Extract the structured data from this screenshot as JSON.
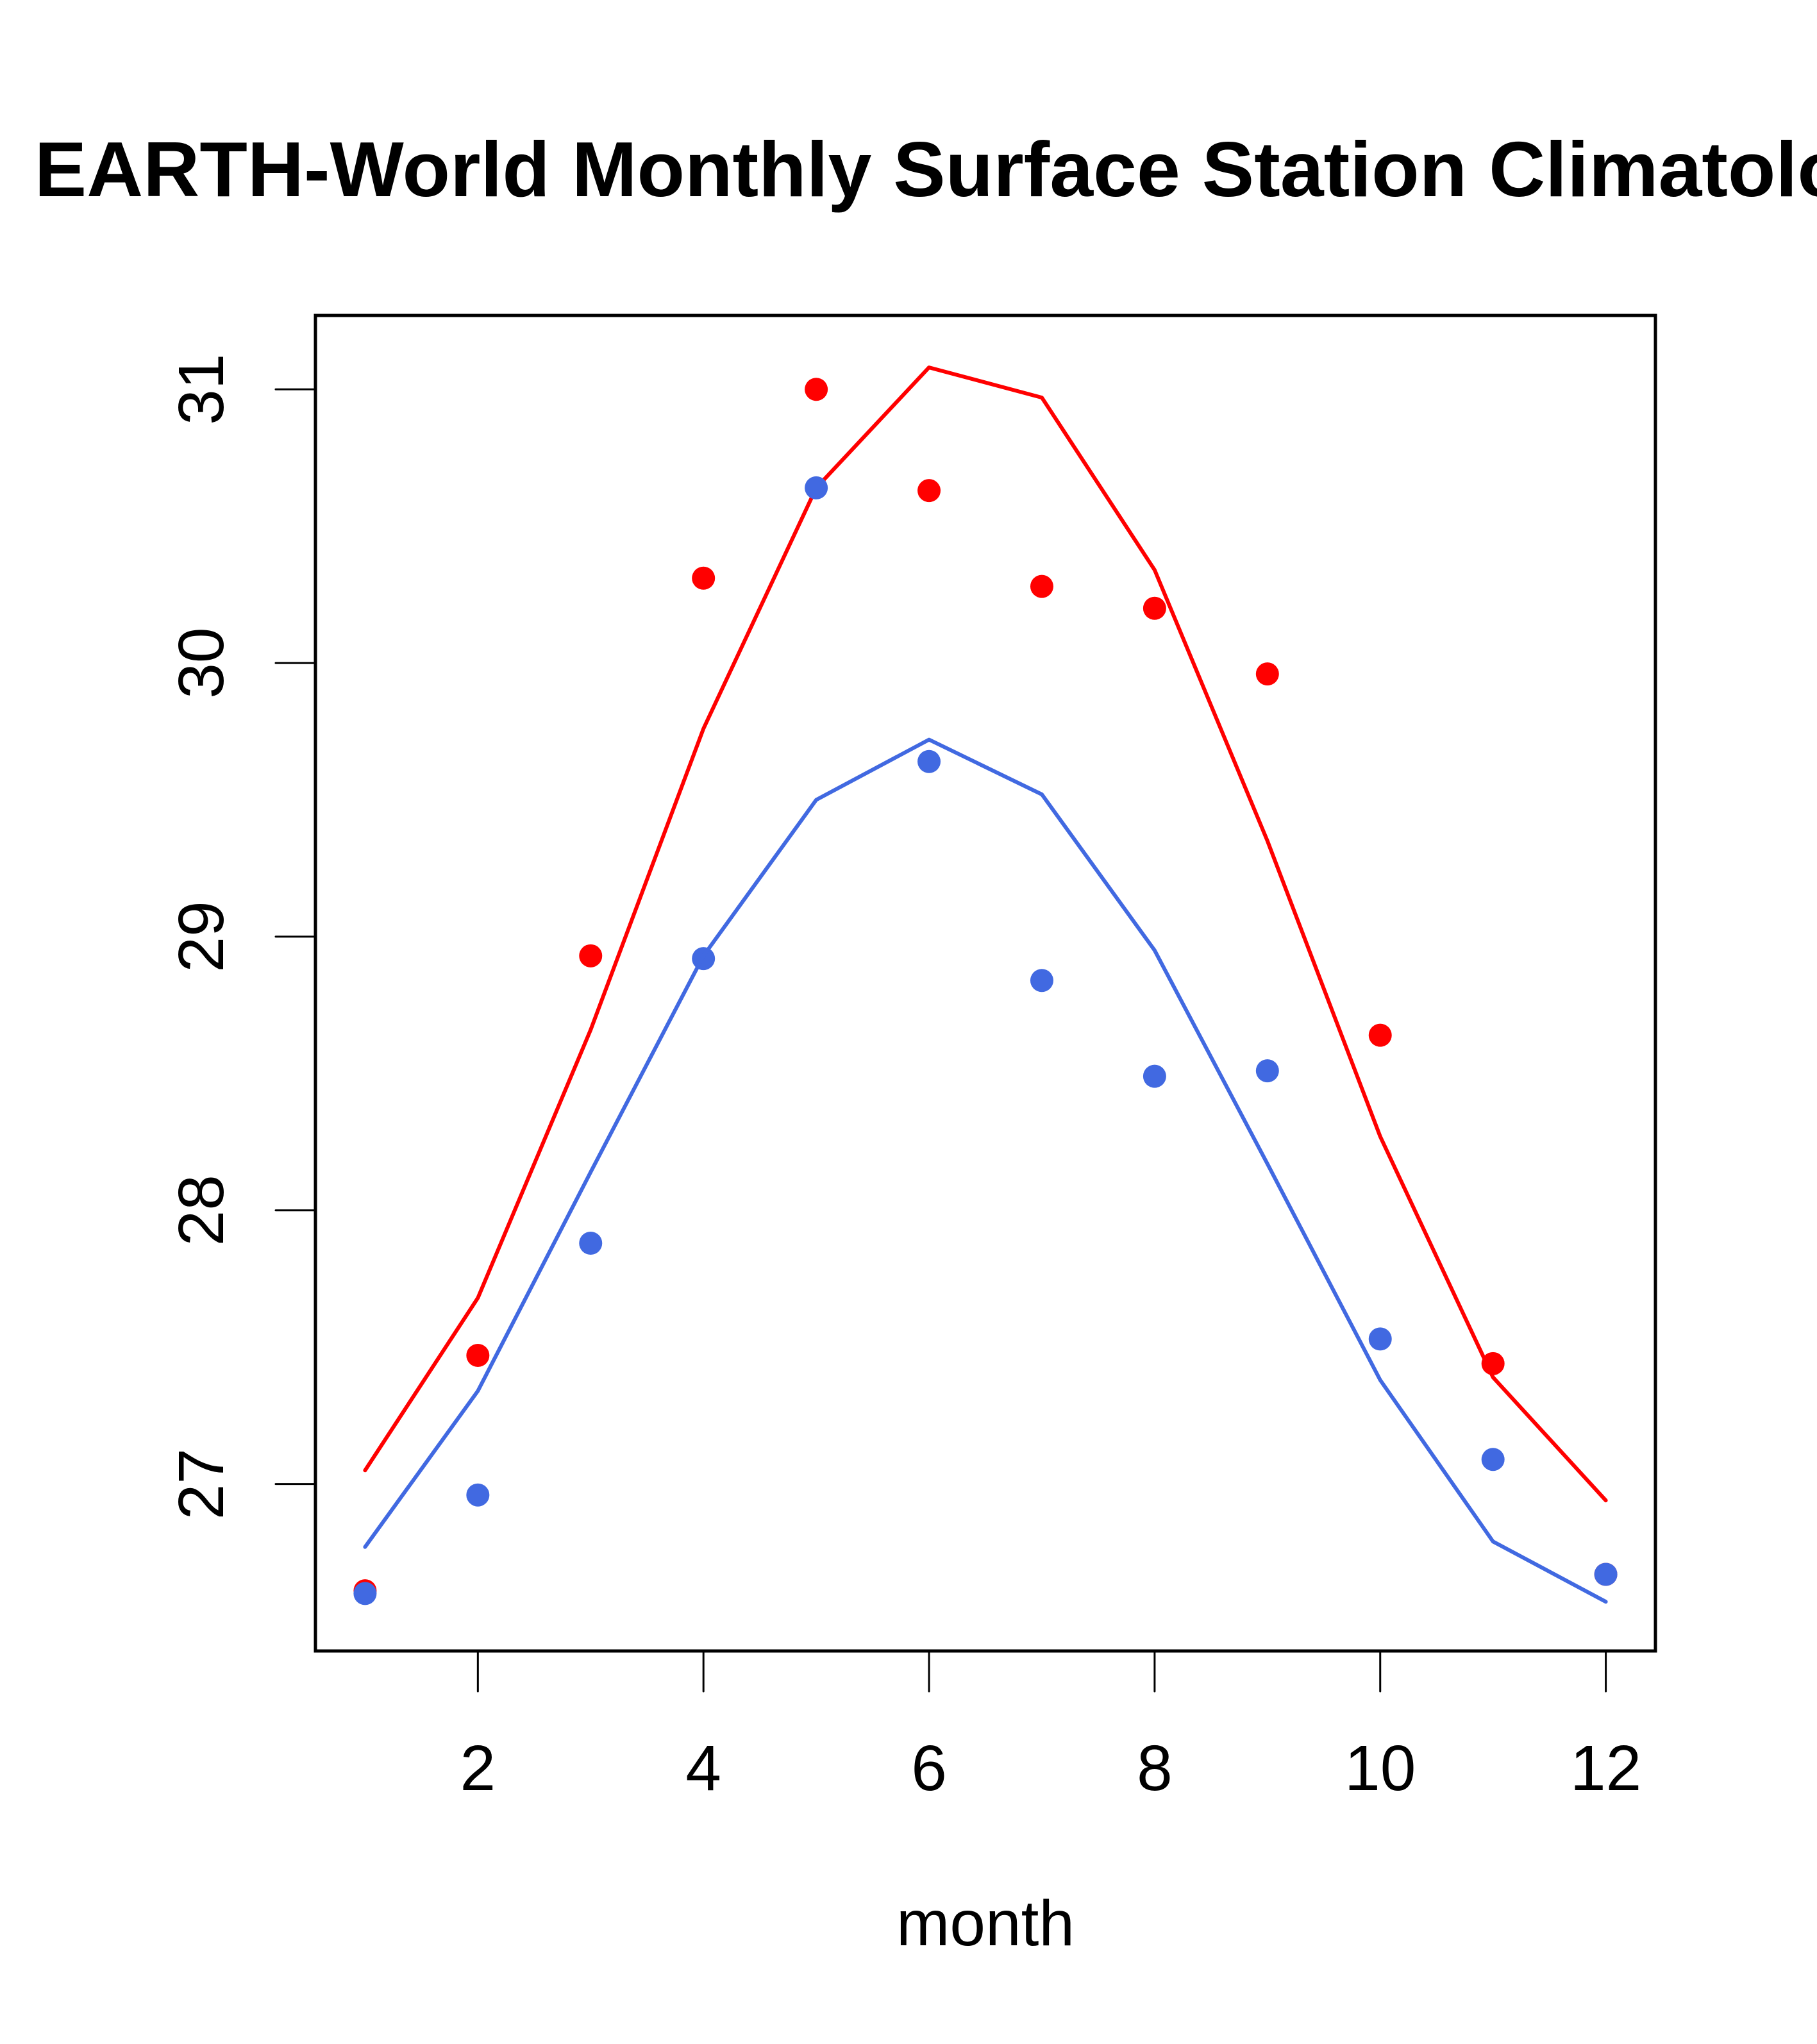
{
  "chart_data": {
    "type": "line",
    "title": "EARTH-World Monthly Surface Station Climatology",
    "xlabel": "month",
    "ylabel": "",
    "x": [
      1,
      2,
      3,
      4,
      5,
      6,
      7,
      8,
      9,
      10,
      11,
      12
    ],
    "xlim": [
      0.56,
      12.44
    ],
    "ylim": [
      26.39,
      31.27
    ],
    "x_ticks": [
      2,
      4,
      6,
      8,
      10,
      12
    ],
    "x_tick_labels": [
      "2",
      "4",
      "6",
      "8",
      "10",
      "12"
    ],
    "y_ticks": [
      27,
      28,
      29,
      30,
      31
    ],
    "y_tick_labels": [
      "27",
      "28",
      "29",
      "30",
      "31"
    ],
    "grid": false,
    "legend": null,
    "series": [
      {
        "name": "red-points",
        "kind": "points",
        "color": "#ff0000",
        "values": [
          26.61,
          27.47,
          28.93,
          30.31,
          31.0,
          30.63,
          30.28,
          30.2,
          29.96,
          28.64,
          27.44,
          26.67
        ]
      },
      {
        "name": "red-line",
        "kind": "line",
        "color": "#ff0000",
        "values": [
          27.05,
          27.68,
          28.66,
          29.76,
          30.64,
          31.08,
          30.97,
          30.34,
          29.35,
          28.27,
          27.39,
          26.94
        ]
      },
      {
        "name": "blue-points",
        "kind": "points",
        "color": "#4169e1",
        "values": [
          26.6,
          26.96,
          27.88,
          28.92,
          30.64,
          29.64,
          28.84,
          28.49,
          28.51,
          27.53,
          27.09,
          26.67
        ]
      },
      {
        "name": "blue-line",
        "kind": "line",
        "color": "#4169e1",
        "values": [
          26.77,
          27.34,
          28.14,
          28.93,
          29.5,
          29.72,
          29.52,
          28.95,
          28.17,
          27.38,
          26.79,
          26.57
        ]
      }
    ]
  }
}
